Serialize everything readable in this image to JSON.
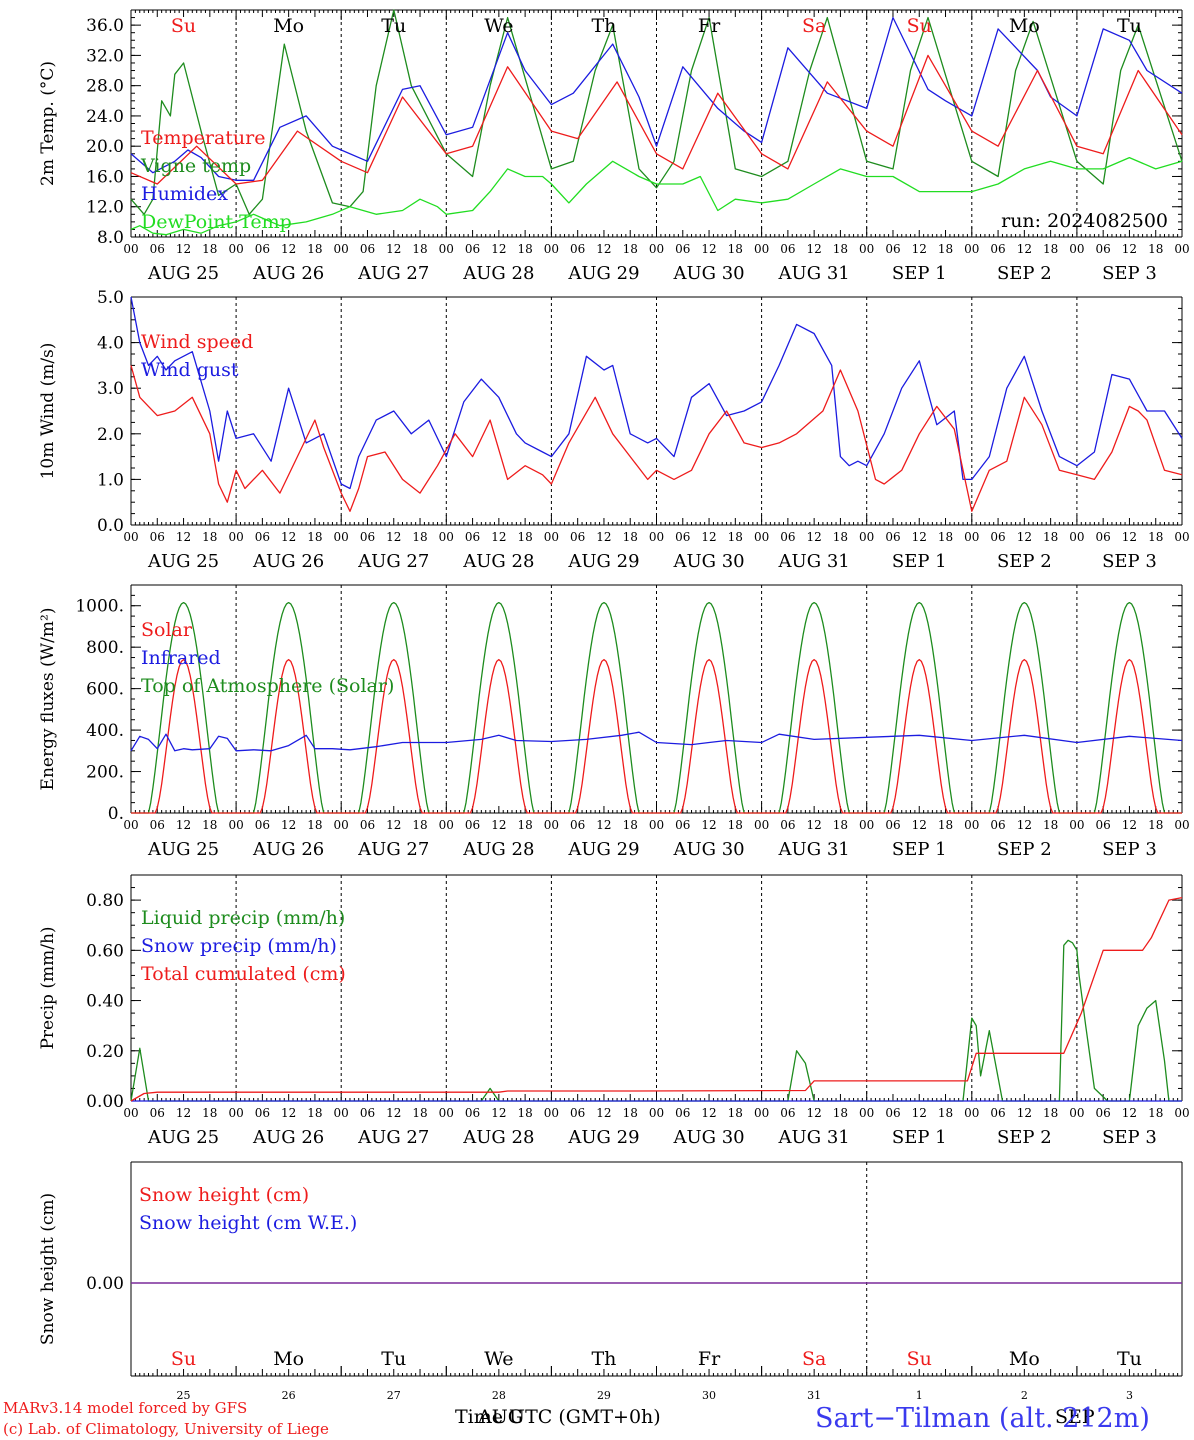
{
  "colors": {
    "red": "#ee1c1c",
    "green": "#1e8c1e",
    "blue": "#1c1ce0",
    "light_green": "#22dd22",
    "purple": "#7a2a9a",
    "footer_blue": "#3a3aee"
  },
  "shared": {
    "hour_ticks": [
      "00",
      "06",
      "12",
      "18"
    ],
    "date_labels": [
      "AUG 25",
      "AUG 26",
      "AUG 27",
      "AUG 28",
      "AUG 29",
      "AUG 30",
      "AUG 31",
      "SEP  1",
      "SEP  2",
      "SEP  3"
    ],
    "weekdays": [
      {
        "label": "Su",
        "color": "red"
      },
      {
        "label": "Mo",
        "color": "black"
      },
      {
        "label": "Tu",
        "color": "black"
      },
      {
        "label": "We",
        "color": "black"
      },
      {
        "label": "Th",
        "color": "black"
      },
      {
        "label": "Fr",
        "color": "black"
      },
      {
        "label": "Sa",
        "color": "red"
      },
      {
        "label": "Su",
        "color": "red"
      },
      {
        "label": "Mo",
        "color": "black"
      },
      {
        "label": "Tu",
        "color": "black"
      }
    ],
    "day_numbers": [
      "25",
      "26",
      "27",
      "28",
      "29",
      "30",
      "31",
      "1",
      "2",
      "3"
    ],
    "days": 10,
    "hours_per_day": 24
  },
  "chart_data": [
    {
      "type": "line",
      "ylabel": "2m Temp. (°C)",
      "ylim": [
        8,
        38
      ],
      "yticks": [
        "8.0",
        "12.0",
        "16.0",
        "20.0",
        "24.0",
        "28.0",
        "32.0",
        "36.0"
      ],
      "run_label": "run: 2024082500",
      "legend_position": "left",
      "series": [
        {
          "name": "Temperature",
          "color": "red",
          "hours": [
            0,
            6,
            15,
            24,
            30,
            38,
            48,
            54,
            62,
            72,
            78,
            86,
            96,
            102,
            111,
            120,
            126,
            134,
            144,
            150,
            159,
            168,
            174,
            182,
            192,
            198,
            207,
            216,
            222,
            230,
            240
          ],
          "values": [
            16.5,
            15,
            20,
            15,
            15.5,
            22,
            18,
            16.5,
            26.5,
            19,
            20,
            30.5,
            22,
            21,
            28.5,
            19,
            17,
            27,
            19,
            17,
            28.5,
            22,
            20,
            32,
            22,
            20,
            30,
            20,
            19,
            30,
            21.5
          ]
        },
        {
          "name": "Vigne temp",
          "color": "green",
          "hours": [
            0,
            3,
            5,
            7,
            9,
            10,
            12,
            16,
            20,
            24,
            27,
            30,
            35,
            40,
            46,
            50,
            53,
            56,
            60,
            64,
            72,
            78,
            82,
            86,
            96,
            101,
            106,
            110,
            116,
            120,
            124,
            128,
            132,
            138,
            144,
            150,
            155,
            159,
            168,
            174,
            178,
            182,
            192,
            198,
            202,
            206,
            216,
            222,
            226,
            230,
            240
          ],
          "values": [
            13,
            11,
            13,
            26,
            24,
            29.5,
            31,
            22,
            13.5,
            15,
            11,
            13,
            33.5,
            22,
            12.5,
            12,
            14,
            28,
            38,
            28,
            19,
            16,
            28,
            37,
            17,
            18,
            30,
            36,
            17,
            14.5,
            18,
            30,
            37,
            17,
            16,
            18,
            30,
            37,
            18,
            17,
            30,
            37,
            18,
            16,
            30,
            36.5,
            18,
            15,
            30,
            36,
            18
          ]
        },
        {
          "name": "Humidex",
          "color": "blue",
          "hours": [
            0,
            5,
            10,
            13,
            16,
            20,
            24,
            28,
            34,
            40,
            46,
            48,
            54,
            62,
            66,
            72,
            78,
            86,
            90,
            96,
            101,
            110,
            116,
            120,
            126,
            134,
            140,
            144,
            150,
            159,
            168,
            174,
            182,
            186,
            192,
            198,
            207,
            210,
            216,
            222,
            228,
            232,
            240
          ],
          "values": [
            19,
            16.5,
            18,
            19.5,
            18.5,
            16,
            15.5,
            15.5,
            22.5,
            24,
            20,
            19.5,
            18,
            27.5,
            28,
            21.5,
            22.5,
            35,
            30,
            25.5,
            27,
            33.5,
            26.5,
            20,
            30.5,
            25,
            22,
            20.5,
            33,
            27,
            25,
            37,
            27.5,
            26,
            24,
            35.5,
            30,
            26.5,
            24,
            35.5,
            34,
            30,
            27
          ]
        },
        {
          "name": "DewPoint Temp",
          "color": "light_green",
          "hours": [
            0,
            2,
            5,
            8,
            12,
            16,
            20,
            24,
            28,
            30,
            34,
            40,
            46,
            50,
            56,
            62,
            66,
            70,
            72,
            78,
            82,
            86,
            90,
            94,
            96,
            100,
            104,
            110,
            116,
            120,
            126,
            130,
            134,
            138,
            144,
            150,
            156,
            162,
            168,
            174,
            180,
            186,
            192,
            198,
            204,
            210,
            216,
            222,
            228,
            234,
            240
          ],
          "values": [
            9,
            9.5,
            8.5,
            8.3,
            9,
            8.5,
            9.5,
            10,
            11,
            10.5,
            9.5,
            10,
            11,
            12,
            11,
            11.5,
            13,
            12,
            11,
            11.5,
            14,
            17,
            16,
            16,
            15,
            12.5,
            15,
            18,
            16,
            15,
            15,
            16,
            11.5,
            13,
            12.5,
            13,
            15,
            17,
            16,
            16,
            14,
            14,
            14,
            15,
            17,
            18,
            17,
            17,
            18.5,
            17,
            18
          ]
        }
      ]
    },
    {
      "type": "line",
      "ylabel": "10m Wind (m/s)",
      "ylim": [
        0,
        5
      ],
      "yticks": [
        "0.0",
        "1.0",
        "2.0",
        "3.0",
        "4.0",
        "5.0"
      ],
      "legend_position": "left",
      "series": [
        {
          "name": "Wind speed",
          "color": "red",
          "hours": [
            0,
            2,
            4,
            6,
            10,
            14,
            18,
            20,
            22,
            24,
            26,
            30,
            34,
            38,
            42,
            44,
            48,
            50,
            52,
            54,
            58,
            62,
            66,
            70,
            74,
            78,
            82,
            86,
            90,
            94,
            96,
            100,
            106,
            110,
            114,
            118,
            120,
            124,
            128,
            132,
            136,
            140,
            144,
            148,
            152,
            158,
            162,
            166,
            170,
            172,
            176,
            180,
            184,
            188,
            192,
            196,
            200,
            204,
            208,
            212,
            216,
            220,
            224,
            228,
            230,
            232,
            236,
            240
          ],
          "values": [
            3.5,
            2.8,
            2.6,
            2.4,
            2.5,
            2.8,
            2.0,
            0.9,
            0.5,
            1.2,
            0.8,
            1.2,
            0.7,
            1.5,
            2.3,
            1.7,
            0.7,
            0.3,
            0.8,
            1.5,
            1.6,
            1.0,
            0.7,
            1.3,
            2.0,
            1.5,
            2.3,
            1.0,
            1.3,
            1.1,
            0.9,
            1.8,
            2.8,
            2.0,
            1.5,
            1.0,
            1.2,
            1.0,
            1.2,
            2.0,
            2.5,
            1.8,
            1.7,
            1.8,
            2.0,
            2.5,
            3.4,
            2.5,
            1.0,
            0.9,
            1.2,
            2.0,
            2.6,
            2.1,
            0.3,
            1.2,
            1.4,
            2.8,
            2.2,
            1.2,
            1.1,
            1.0,
            1.6,
            2.6,
            2.5,
            2.3,
            1.2,
            1.1
          ]
        },
        {
          "name": "Wind gust",
          "color": "blue",
          "hours": [
            0,
            2,
            4,
            6,
            8,
            10,
            14,
            18,
            20,
            22,
            24,
            28,
            32,
            36,
            40,
            44,
            48,
            50,
            52,
            56,
            60,
            64,
            68,
            72,
            76,
            80,
            84,
            88,
            90,
            94,
            96,
            100,
            104,
            108,
            110,
            114,
            118,
            120,
            124,
            128,
            132,
            136,
            140,
            144,
            148,
            152,
            156,
            160,
            162,
            164,
            166,
            168,
            172,
            176,
            180,
            184,
            188,
            190,
            192,
            196,
            200,
            204,
            208,
            212,
            216,
            220,
            224,
            228,
            232,
            236,
            240
          ],
          "values": [
            5.0,
            4.0,
            3.5,
            3.7,
            3.4,
            3.6,
            3.8,
            2.5,
            1.4,
            2.5,
            1.9,
            2.0,
            1.4,
            3.0,
            1.8,
            2.0,
            0.9,
            0.8,
            1.5,
            2.3,
            2.5,
            2.0,
            2.3,
            1.5,
            2.7,
            3.2,
            2.8,
            2.0,
            1.8,
            1.6,
            1.5,
            2.0,
            3.7,
            3.4,
            3.5,
            2.0,
            1.8,
            1.9,
            1.5,
            2.8,
            3.1,
            2.4,
            2.5,
            2.7,
            3.5,
            4.4,
            4.2,
            3.5,
            1.5,
            1.3,
            1.4,
            1.3,
            2.0,
            3.0,
            3.6,
            2.2,
            2.5,
            1.0,
            1.0,
            1.5,
            3.0,
            3.7,
            2.5,
            1.5,
            1.3,
            1.6,
            3.3,
            3.2,
            2.5,
            2.5,
            1.9
          ]
        }
      ]
    },
    {
      "type": "line",
      "ylabel": "Energy fluxes (W/m²)",
      "ylim": [
        0,
        1100
      ],
      "yticks": [
        "0.",
        "200.",
        "400.",
        "600.",
        "800.",
        "1000."
      ],
      "legend_position": "left",
      "series": [
        {
          "name": "Solar",
          "color": "red",
          "peak": 740
        },
        {
          "name": "Infrared",
          "color": "blue",
          "hours": [
            0,
            2,
            4,
            6,
            8,
            10,
            12,
            14,
            18,
            20,
            22,
            24,
            28,
            32,
            36,
            40,
            42,
            46,
            50,
            56,
            62,
            72,
            80,
            84,
            88,
            96,
            104,
            112,
            116,
            120,
            128,
            132,
            136,
            144,
            148,
            156,
            168,
            180,
            192,
            204,
            216,
            228,
            240
          ],
          "values": [
            300,
            370,
            355,
            310,
            380,
            300,
            310,
            305,
            310,
            370,
            360,
            300,
            305,
            300,
            325,
            375,
            310,
            310,
            305,
            320,
            340,
            340,
            355,
            375,
            350,
            345,
            355,
            375,
            390,
            340,
            330,
            340,
            350,
            340,
            380,
            355,
            365,
            375,
            350,
            375,
            340,
            370,
            350
          ]
        },
        {
          "name": "Top of Atmosphere (Solar)",
          "color": "green",
          "peak": 1015
        }
      ],
      "solar_sunrise_hour": 4,
      "solar_sunset_hour": 20
    },
    {
      "type": "line",
      "ylabel": "Precip (mm/h)",
      "ylim": [
        0,
        0.9
      ],
      "yticks": [
        "0.00",
        "0.20",
        "0.40",
        "0.60",
        "0.80"
      ],
      "legend_position": "left",
      "series": [
        {
          "name": "Liquid precip (mm/h)",
          "color": "green",
          "hours": [
            0,
            2,
            4,
            6,
            80,
            82,
            84,
            86,
            150,
            152,
            154,
            156,
            158,
            160,
            162,
            180,
            190,
            192,
            193,
            194,
            196,
            199,
            200,
            202,
            206,
            212,
            213,
            214,
            215,
            216,
            216.5,
            218,
            220,
            223,
            224,
            226,
            228,
            230,
            232,
            234,
            236,
            237,
            240
          ],
          "values": [
            0,
            0.21,
            0,
            0,
            0,
            0.05,
            0,
            0,
            0,
            0.2,
            0.15,
            0,
            0,
            0,
            0,
            0,
            0,
            0.33,
            0.3,
            0.1,
            0.28,
            0,
            0,
            0,
            0,
            0,
            0.62,
            0.64,
            0.63,
            0.6,
            0.5,
            0.3,
            0.05,
            0,
            0,
            0,
            0,
            0.3,
            0.37,
            0.4,
            0.16,
            0,
            0
          ]
        },
        {
          "name": "Snow precip (mm/h)",
          "color": "blue",
          "hours": [
            0,
            240
          ],
          "values": [
            0,
            0
          ]
        },
        {
          "name": "Total cumulated (cm)",
          "color": "red",
          "hours": [
            0,
            3,
            6,
            84,
            86,
            115,
            154,
            156,
            181,
            191,
            193,
            213,
            217,
            222,
            228,
            231,
            233,
            237,
            240
          ],
          "values": [
            0,
            0.03,
            0.035,
            0.035,
            0.04,
            0.04,
            0.042,
            0.08,
            0.08,
            0.08,
            0.19,
            0.19,
            0.35,
            0.6,
            0.6,
            0.6,
            0.65,
            0.8,
            0.81
          ]
        }
      ]
    },
    {
      "type": "line",
      "ylabel": "Snow height (cm)",
      "ytick": "0.00",
      "legend_position": "left",
      "series": [
        {
          "name": "Snow height (cm)",
          "color": "red",
          "values": [
            0
          ]
        },
        {
          "name": "Snow height (cm W.E.)",
          "color": "blue",
          "values": [
            0
          ]
        }
      ]
    }
  ],
  "footer": {
    "model_line1": "MARv3.14 model forced by GFS",
    "model_line2": "(c) Lab. of Climatology, University of Liege",
    "time_label": "Time UTC (GMT+0h)",
    "time_overlap": "AUG",
    "month_overlap": "SEP",
    "station": "Sart−Tilman (alt. 212m)"
  }
}
